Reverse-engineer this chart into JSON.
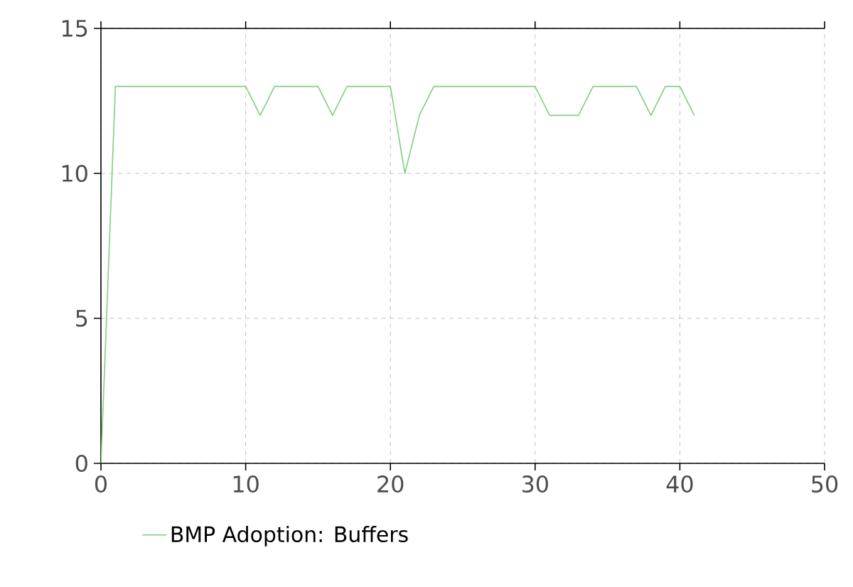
{
  "chart_data": {
    "type": "line",
    "x": [
      0,
      1,
      2,
      3,
      4,
      5,
      6,
      7,
      8,
      9,
      10,
      11,
      12,
      13,
      14,
      15,
      16,
      17,
      18,
      19,
      20,
      21,
      22,
      23,
      24,
      25,
      26,
      27,
      28,
      29,
      30,
      31,
      32,
      33,
      34,
      35,
      36,
      37,
      38,
      39,
      40,
      41
    ],
    "series": [
      {
        "name": "BMP Adoption: Buffers",
        "color": "#7fcf7f",
        "values": [
          0,
          13,
          13,
          13,
          13,
          13,
          13,
          13,
          13,
          13,
          13,
          12,
          13,
          13,
          13,
          13,
          12,
          13,
          13,
          13,
          13,
          10,
          12,
          13,
          13,
          13,
          13,
          13,
          13,
          13,
          13,
          12,
          12,
          12,
          13,
          13,
          13,
          13,
          12,
          13,
          13,
          12
        ]
      }
    ],
    "xlim": [
      0,
      50
    ],
    "ylim": [
      0,
      15
    ],
    "xticks": [
      0,
      10,
      20,
      30,
      40,
      50
    ],
    "yticks": [
      0,
      5,
      10,
      15
    ],
    "grid": true,
    "legend": "bottom",
    "marker": "none",
    "line_style": "solid"
  }
}
